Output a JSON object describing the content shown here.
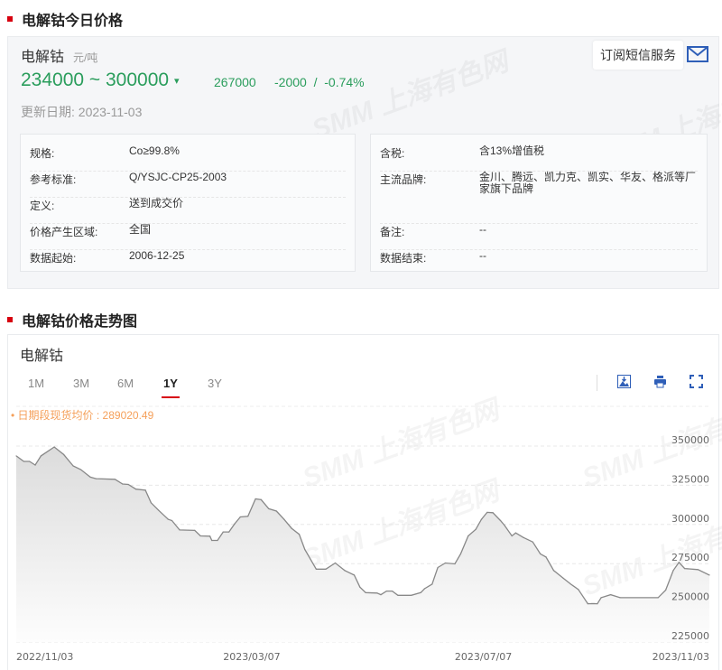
{
  "section1": {
    "title": "电解钴今日价格"
  },
  "price": {
    "name": "电解钴",
    "unit": "元/吨",
    "range": "234000 ~ 300000",
    "trend_icon": "down-arrow-icon",
    "mid": "267000",
    "change": "-2000",
    "separator": "/",
    "change_pct": "-0.74%",
    "update_label": "更新日期:",
    "update_date": "2023-11-03",
    "sms_button": "订阅短信服务",
    "mail_icon": "envelope-icon",
    "color_down": "#2a9d5c"
  },
  "info_left": [
    {
      "k": "规格:",
      "v": "Co≥99.8%"
    },
    {
      "k": "参考标准:",
      "v": "Q/YSJC-CP25-2003"
    },
    {
      "k": "定义:",
      "v": "送到成交价"
    },
    {
      "k": "价格产生区域:",
      "v": "全国"
    },
    {
      "k": "数据起始:",
      "v": "2006-12-25"
    }
  ],
  "info_right": [
    {
      "k": "含税:",
      "v": "含13%增值税"
    },
    {
      "k": "主流品牌:",
      "v": "金川、腾远、凯力克、凯实、华友、格派等厂家旗下品牌"
    },
    {
      "k": "备注:",
      "v": "--"
    },
    {
      "k": "数据结束:",
      "v": "--"
    }
  ],
  "section2": {
    "title": "电解钴价格走势图"
  },
  "chart_panel": {
    "title": "电解钴",
    "tabs": [
      "1M",
      "3M",
      "6M",
      "1Y",
      "3Y"
    ],
    "active_tab": "1Y",
    "tools": [
      "image-download-icon",
      "print-icon",
      "fullscreen-icon"
    ],
    "avg_label": "日期段现货均价 : 289020.49",
    "accent": "#d7000f",
    "avg_color": "#f5a05a"
  },
  "watermark": "SMM 上海有色网",
  "chart_data": {
    "type": "area",
    "title": "",
    "xlabel": "",
    "ylabel": "",
    "ylim": [
      225000,
      350000
    ],
    "yticks": [
      "350000",
      "325000",
      "300000",
      "275000",
      "250000",
      "225000"
    ],
    "xticks": [
      "2022/11/03",
      "2023/03/07",
      "2023/07/07",
      "2023/11/03"
    ],
    "grid": true,
    "line_color": "#888888",
    "x": [
      "2022-11-03",
      "2022-11-07",
      "2022-11-10",
      "2022-11-13",
      "2022-11-16",
      "2022-11-23",
      "2022-11-28",
      "2022-12-03",
      "2022-12-07",
      "2022-12-12",
      "2022-12-15",
      "2022-12-25",
      "2022-12-29",
      "2023-01-01",
      "2023-01-05",
      "2023-01-10",
      "2023-01-13",
      "2023-01-17",
      "2023-01-22",
      "2023-01-24",
      "2023-01-28",
      "2023-02-05",
      "2023-02-08",
      "2023-02-13",
      "2023-02-14",
      "2023-02-17",
      "2023-02-20",
      "2023-02-23",
      "2023-02-26",
      "2023-03-01",
      "2023-03-05",
      "2023-03-09",
      "2023-03-12",
      "2023-03-16",
      "2023-03-20",
      "2023-03-24",
      "2023-03-28",
      "2023-04-01",
      "2023-04-04",
      "2023-04-10",
      "2023-04-15",
      "2023-04-20",
      "2023-04-25",
      "2023-04-30",
      "2023-05-03",
      "2023-05-06",
      "2023-05-12",
      "2023-05-14",
      "2023-05-17",
      "2023-05-20",
      "2023-05-23",
      "2023-05-30",
      "2023-06-04",
      "2023-06-06",
      "2023-06-10",
      "2023-06-13",
      "2023-06-17",
      "2023-06-22",
      "2023-06-25",
      "2023-06-29",
      "2023-07-03",
      "2023-07-06",
      "2023-07-09",
      "2023-07-12",
      "2023-07-16",
      "2023-07-18",
      "2023-07-22",
      "2023-07-24",
      "2023-07-28",
      "2023-08-02",
      "2023-08-06",
      "2023-08-09",
      "2023-08-13",
      "2023-08-18",
      "2023-08-22",
      "2023-08-26",
      "2023-08-31",
      "2023-09-05",
      "2023-09-07",
      "2023-09-12",
      "2023-09-17",
      "2023-10-07",
      "2023-10-11",
      "2023-10-15",
      "2023-10-18",
      "2023-10-21",
      "2023-10-28",
      "2023-11-03"
    ],
    "values": [
      343700,
      340200,
      340200,
      337900,
      343700,
      349400,
      344600,
      337300,
      335000,
      330200,
      329200,
      328800,
      325800,
      325500,
      322500,
      321900,
      313800,
      309000,
      303300,
      302500,
      296500,
      296200,
      292700,
      292500,
      289800,
      289800,
      295200,
      295200,
      300400,
      304800,
      305200,
      316300,
      315800,
      310000,
      308500,
      303300,
      297500,
      293700,
      284000,
      271500,
      271500,
      275400,
      270600,
      267700,
      260000,
      256500,
      256200,
      255200,
      257500,
      257500,
      254800,
      254800,
      256500,
      259000,
      261900,
      272500,
      275400,
      274800,
      281200,
      292700,
      296900,
      303300,
      307700,
      307500,
      302500,
      299600,
      292700,
      294600,
      291700,
      288800,
      281200,
      279200,
      270600,
      265800,
      261900,
      258500,
      249400,
      249400,
      253300,
      255200,
      253300,
      253300,
      258100,
      270600,
      275800,
      271900,
      271200,
      267700
    ]
  }
}
